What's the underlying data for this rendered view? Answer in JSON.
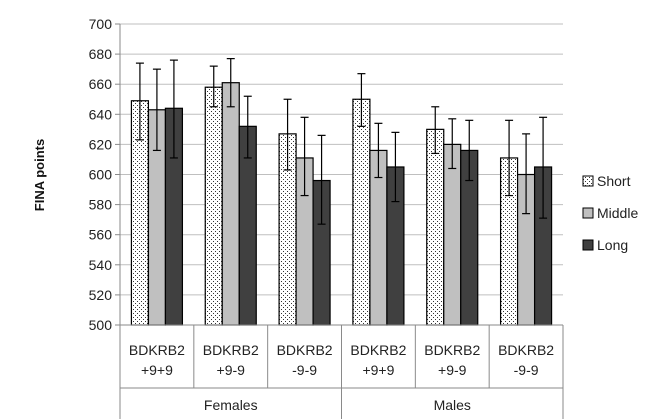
{
  "chart_data": {
    "type": "bar",
    "title": "",
    "xlabel": "",
    "ylabel": "FINA points",
    "ylim": [
      500,
      700
    ],
    "yticks": [
      500,
      520,
      540,
      560,
      580,
      600,
      620,
      640,
      660,
      680,
      700
    ],
    "grid": "horizontal",
    "legend_position": "right",
    "categories": [
      {
        "line1": "BDKRB2",
        "line2": "+9+9"
      },
      {
        "line1": "BDKRB2",
        "line2": "+9-9"
      },
      {
        "line1": "BDKRB2",
        "line2": "-9-9"
      },
      {
        "line1": "BDKRB2",
        "line2": "+9+9"
      },
      {
        "line1": "BDKRB2",
        "line2": "+9-9"
      },
      {
        "line1": "BDKRB2",
        "line2": "-9-9"
      }
    ],
    "groups": [
      {
        "label": "Females",
        "span": [
          0,
          2
        ]
      },
      {
        "label": "Males",
        "span": [
          3,
          5
        ]
      }
    ],
    "series": [
      {
        "name": "Short",
        "style": "dotted",
        "fill": "#ffffff",
        "values": [
          649,
          658,
          627,
          650,
          630,
          611
        ],
        "err_low": [
          623,
          645,
          603,
          632,
          614,
          586
        ],
        "err_high": [
          674,
          672,
          650,
          667,
          645,
          636
        ]
      },
      {
        "name": "Middle",
        "style": "solid",
        "fill": "#c0c0c0",
        "values": [
          643,
          661,
          611,
          616,
          620,
          600
        ],
        "err_low": [
          616,
          645,
          586,
          598,
          604,
          574
        ],
        "err_high": [
          670,
          677,
          638,
          634,
          637,
          627
        ]
      },
      {
        "name": "Long",
        "style": "solid",
        "fill": "#404040",
        "values": [
          644,
          632,
          596,
          605,
          616,
          605
        ],
        "err_low": [
          611,
          611,
          567,
          582,
          596,
          571
        ],
        "err_high": [
          676,
          652,
          626,
          628,
          636,
          638
        ]
      }
    ]
  }
}
